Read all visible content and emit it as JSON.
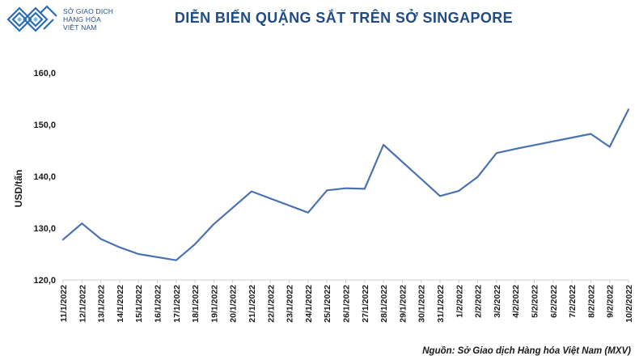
{
  "logo": {
    "line1": "SỞ GIAO DỊCH",
    "line2": "HÀNG HÓA",
    "line3": "VIỆT NAM",
    "icon": "mxv-logo-icon",
    "color": "#1f4f8c"
  },
  "colors": {
    "line": "#4a72b0",
    "title": "#1f4b86",
    "axis": "#cfcfcf",
    "grid": "#e6e6e6"
  },
  "source": "Nguồn: Sở Giao dịch Hàng hóa Việt Nam (MXV)",
  "chart_data": {
    "type": "line",
    "title": "DIỄN BIẾN QUẶNG SẮT TRÊN SỞ SINGAPORE",
    "xlabel": "",
    "ylabel": "USD/tấn",
    "ylim": [
      120,
      160
    ],
    "yticks": [
      "120,0",
      "130,0",
      "140,0",
      "150,0",
      "160,0"
    ],
    "ytick_values": [
      120,
      130,
      140,
      150,
      160
    ],
    "grid": false,
    "categories": [
      "11/1/2022",
      "12/1/2022",
      "13/1/2022",
      "14/1/2022",
      "15/1/2022",
      "16/1/2022",
      "17/1/2022",
      "18/1/2022",
      "19/1/2022",
      "20/1/2022",
      "21/1/2022",
      "22/1/2022",
      "23/1/2022",
      "24/1/2022",
      "25/1/2022",
      "26/1/2022",
      "27/1/2022",
      "28/1/2022",
      "29/1/2022",
      "30/1/2022",
      "31/1/2022",
      "1/2/2022",
      "2/2/2022",
      "3/2/2022",
      "4/2/2022",
      "5/2/2022",
      "6/2/2022",
      "7/2/2022",
      "8/2/2022",
      "9/2/2022",
      "10/2/2022"
    ],
    "series": [
      {
        "values": [
          127.8,
          130.9,
          127.9,
          126.3,
          125.0,
          null,
          123.8,
          126.9,
          130.8,
          null,
          137.1,
          null,
          null,
          133.0,
          137.3,
          137.7,
          137.6,
          146.1,
          null,
          null,
          136.2,
          137.2,
          139.9,
          144.5,
          145.3,
          null,
          null,
          null,
          148.2,
          145.7,
          152.9
        ]
      }
    ]
  }
}
